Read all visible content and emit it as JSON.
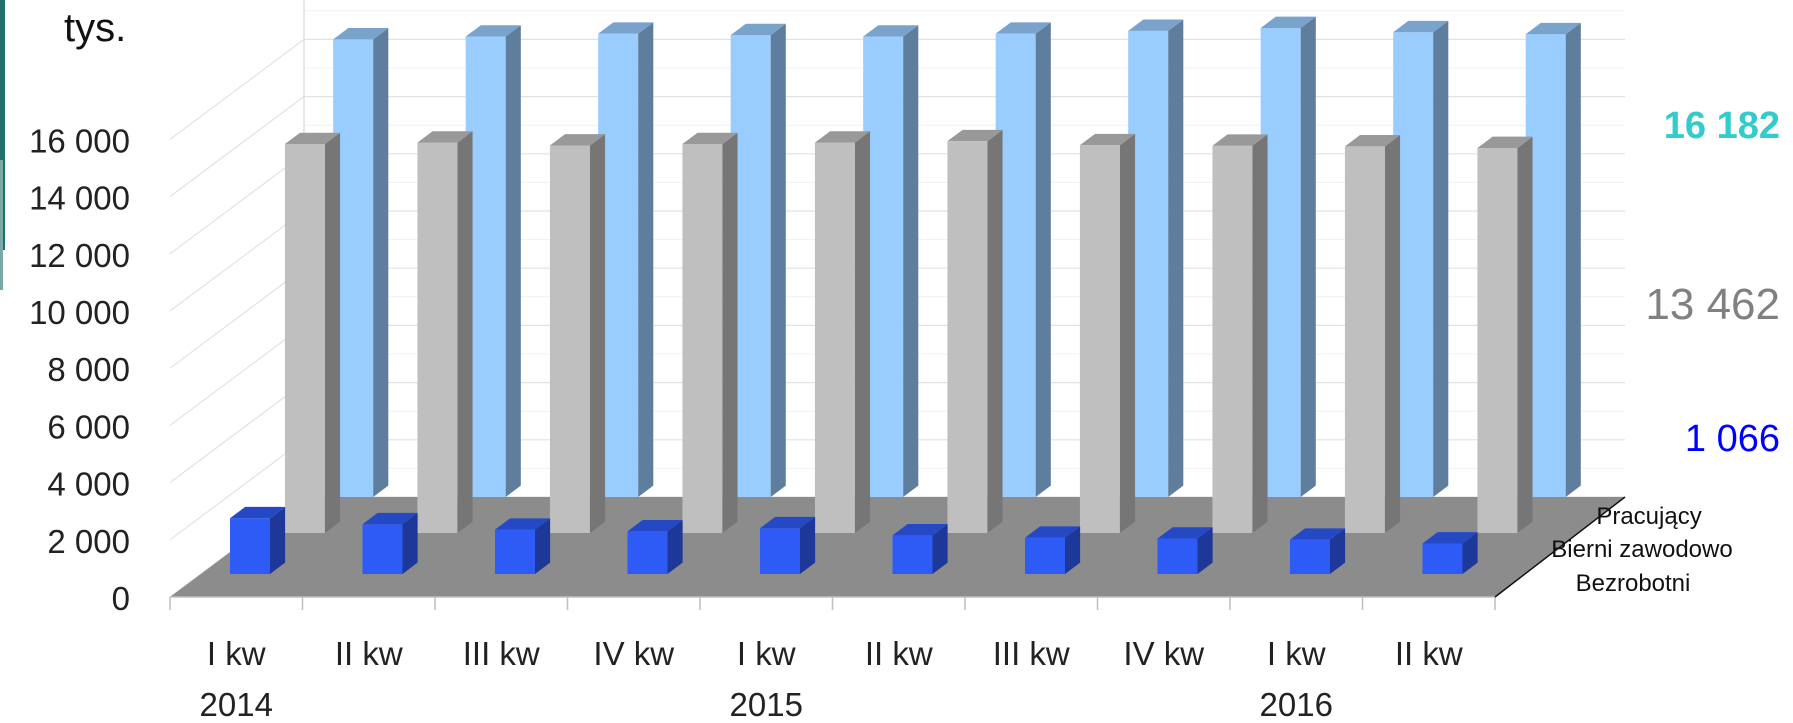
{
  "unit_label": "tys.",
  "chart_data": {
    "type": "bar",
    "subtype": "3d-column",
    "categories": [
      "I kw",
      "II kw",
      "III kw",
      "IV kw",
      "I kw",
      "II kw",
      "III kw",
      "IV kw",
      "I kw",
      "II kw"
    ],
    "year_labels": [
      {
        "label": "2014",
        "category_index": 0
      },
      {
        "label": "2015",
        "category_index": 4
      },
      {
        "label": "2016",
        "category_index": 8
      }
    ],
    "yticks": [
      "0",
      "2 000",
      "4 000",
      "6 000",
      "8 000",
      "10 000",
      "12 000",
      "14 000",
      "16 000"
    ],
    "ylim": [
      0,
      16000
    ],
    "grid": true,
    "series": [
      {
        "name": "Bezrobotni",
        "color": "#2e5bf5",
        "values": [
          1950,
          1740,
          1550,
          1490,
          1600,
          1350,
          1270,
          1240,
          1200,
          1066
        ]
      },
      {
        "name": "Bierni zawodowo",
        "color": "#bfbfbf",
        "values": [
          13600,
          13650,
          13550,
          13600,
          13650,
          13700,
          13560,
          13540,
          13520,
          13462
        ]
      },
      {
        "name": "Pracujący",
        "color": "#99ccff",
        "values": [
          16000,
          16100,
          16200,
          16150,
          16100,
          16200,
          16300,
          16400,
          16250,
          16182
        ]
      }
    ],
    "end_labels": [
      {
        "series": "Pracujący",
        "text": "16 182",
        "color": "#33cccc"
      },
      {
        "series": "Bierni zawodowo",
        "text": "13 462",
        "color": "#808080"
      },
      {
        "series": "Bezrobotni",
        "text": "1 066",
        "color": "#0000ff"
      }
    ]
  }
}
